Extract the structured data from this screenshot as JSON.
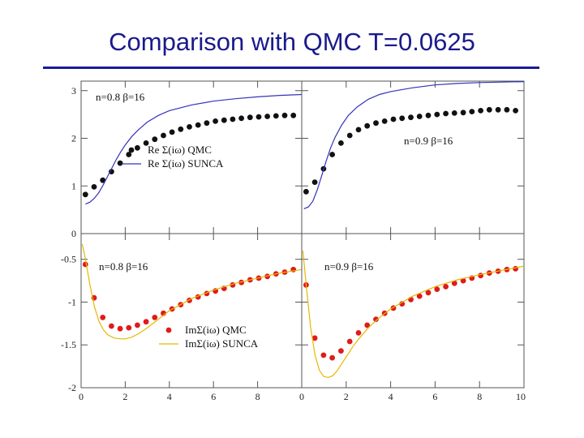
{
  "slide": {
    "title": "Comparison with QMC T=0.0625"
  },
  "colors": {
    "title": "#1a1a8c",
    "qmc_re": "#111111",
    "sunca_re": "#3333bb",
    "qmc_im": "#e11a1a",
    "sunca_im": "#e6b800",
    "frame": "#555555"
  },
  "chart_data": [
    {
      "type": "scatter",
      "panel": "top-left",
      "annotation": "n=0.8  β=16",
      "xlim": [
        0,
        10
      ],
      "ylim": [
        0,
        3.2
      ],
      "yticks": [
        0,
        1,
        2,
        3
      ],
      "ytick_labels": [
        "0",
        "1",
        "2",
        "3"
      ],
      "legend": [
        {
          "label": "Re Σ(iω) QMC",
          "marker": "dot"
        },
        {
          "label": "Re Σ(iω) SUNCA",
          "marker": "line"
        }
      ],
      "legend_position": "center-right",
      "series": [
        {
          "name": "Re Σ(iω) QMC",
          "kind": "points",
          "color": "#111111",
          "x": [
            0.196,
            0.589,
            0.982,
            1.374,
            1.767,
            2.16,
            2.553,
            2.945,
            3.338,
            3.731,
            4.123,
            4.516,
            4.909,
            5.301,
            5.694,
            6.087,
            6.48,
            6.872,
            7.265,
            7.658,
            8.05,
            8.443,
            8.836,
            9.229,
            9.621
          ],
          "y": [
            0.82,
            0.98,
            1.12,
            1.3,
            1.48,
            1.66,
            1.8,
            1.9,
            1.98,
            2.06,
            2.13,
            2.19,
            2.24,
            2.28,
            2.32,
            2.36,
            2.38,
            2.4,
            2.42,
            2.44,
            2.45,
            2.46,
            2.47,
            2.48,
            2.48
          ]
        },
        {
          "name": "Re Σ(iω) SUNCA",
          "kind": "line",
          "color": "#3333bb",
          "x": [
            0.2,
            0.4,
            0.6,
            0.8,
            1.0,
            1.2,
            1.4,
            1.6,
            1.8,
            2.0,
            2.3,
            2.6,
            3.0,
            3.5,
            4.0,
            5.0,
            6.0,
            7.0,
            8.0,
            9.0,
            10.0
          ],
          "y": [
            0.62,
            0.66,
            0.74,
            0.86,
            1.02,
            1.2,
            1.38,
            1.56,
            1.72,
            1.86,
            2.04,
            2.18,
            2.34,
            2.48,
            2.58,
            2.7,
            2.78,
            2.83,
            2.87,
            2.9,
            2.92
          ]
        }
      ]
    },
    {
      "type": "scatter",
      "panel": "top-right",
      "annotation": "n=0.9  β=16",
      "xlim": [
        0,
        10
      ],
      "ylim": [
        0,
        3.2
      ],
      "yticks": [
        0,
        1,
        2,
        3
      ],
      "ytick_labels": [
        "0",
        "1",
        "2",
        "3"
      ],
      "series": [
        {
          "name": "Re Σ(iω) QMC",
          "kind": "points",
          "color": "#111111",
          "x": [
            0.196,
            0.589,
            0.982,
            1.374,
            1.767,
            2.16,
            2.553,
            2.945,
            3.338,
            3.731,
            4.123,
            4.516,
            4.909,
            5.301,
            5.694,
            6.087,
            6.48,
            6.872,
            7.265,
            7.658,
            8.05,
            8.443,
            8.836,
            9.229,
            9.621
          ],
          "y": [
            0.88,
            1.08,
            1.36,
            1.66,
            1.9,
            2.06,
            2.18,
            2.26,
            2.32,
            2.36,
            2.4,
            2.42,
            2.44,
            2.46,
            2.48,
            2.5,
            2.52,
            2.53,
            2.54,
            2.56,
            2.58,
            2.6,
            2.6,
            2.6,
            2.58
          ]
        },
        {
          "name": "Re Σ(iω) SUNCA",
          "kind": "line",
          "color": "#3333bb",
          "x": [
            0.1,
            0.3,
            0.5,
            0.7,
            0.9,
            1.1,
            1.3,
            1.5,
            1.8,
            2.1,
            2.5,
            3.0,
            3.5,
            4.0,
            5.0,
            6.0,
            7.0,
            8.0,
            9.0,
            10.0
          ],
          "y": [
            0.52,
            0.56,
            0.68,
            0.92,
            1.22,
            1.52,
            1.8,
            2.02,
            2.28,
            2.48,
            2.66,
            2.82,
            2.92,
            2.98,
            3.06,
            3.12,
            3.15,
            3.17,
            3.18,
            3.19
          ]
        }
      ]
    },
    {
      "type": "scatter",
      "panel": "bottom-left",
      "annotation": "n=0.8  β=16",
      "xlim": [
        0,
        10
      ],
      "ylim": [
        -2,
        -0.2
      ],
      "xticks": [
        0,
        2,
        4,
        6,
        8
      ],
      "xtick_labels": [
        "0",
        "2",
        "4",
        "6",
        "8"
      ],
      "yticks": [
        -0.5,
        -1,
        -1.5,
        -2
      ],
      "ytick_labels": [
        "-0.5",
        "-1",
        "-1.5",
        "-2"
      ],
      "legend": [
        {
          "label": "ImΣ(iω)  QMC",
          "marker": "dot"
        },
        {
          "label": "ImΣ(iω)  SUNCA",
          "marker": "line"
        }
      ],
      "legend_position": "lower-right",
      "series": [
        {
          "name": "ImΣ(iω) QMC",
          "kind": "points",
          "color": "#e11a1a",
          "x": [
            0.196,
            0.589,
            0.982,
            1.374,
            1.767,
            2.16,
            2.553,
            2.945,
            3.338,
            3.731,
            4.123,
            4.516,
            4.909,
            5.301,
            5.694,
            6.087,
            6.48,
            6.872,
            7.265,
            7.658,
            8.05,
            8.443,
            8.836,
            9.229,
            9.621
          ],
          "y": [
            -0.56,
            -0.95,
            -1.18,
            -1.28,
            -1.31,
            -1.3,
            -1.27,
            -1.23,
            -1.18,
            -1.13,
            -1.08,
            -1.03,
            -0.98,
            -0.94,
            -0.9,
            -0.87,
            -0.84,
            -0.8,
            -0.77,
            -0.74,
            -0.72,
            -0.7,
            -0.67,
            -0.65,
            -0.62
          ]
        },
        {
          "name": "ImΣ(iω) SUNCA",
          "kind": "line",
          "color": "#e6b800",
          "x": [
            0.05,
            0.2,
            0.4,
            0.6,
            0.8,
            1.0,
            1.2,
            1.5,
            1.8,
            2.0,
            2.3,
            2.6,
            3.0,
            3.5,
            4.0,
            5.0,
            6.0,
            7.0,
            8.0,
            9.0,
            10.0
          ],
          "y": [
            -0.32,
            -0.5,
            -0.8,
            -1.05,
            -1.22,
            -1.32,
            -1.38,
            -1.42,
            -1.43,
            -1.43,
            -1.41,
            -1.37,
            -1.3,
            -1.2,
            -1.1,
            -0.96,
            -0.86,
            -0.78,
            -0.72,
            -0.66,
            -0.62
          ]
        }
      ]
    },
    {
      "type": "scatter",
      "panel": "bottom-right",
      "annotation": "n=0.9  β=16",
      "xlim": [
        0,
        10
      ],
      "ylim": [
        -2,
        -0.2
      ],
      "xticks": [
        0,
        2,
        4,
        6,
        8,
        10
      ],
      "xtick_labels": [
        "0",
        "2",
        "4",
        "6",
        "8",
        "10"
      ],
      "yticks": [
        -0.5,
        -1,
        -1.5,
        -2
      ],
      "ytick_labels": [
        "-0.5",
        "-1",
        "-1.5",
        "-2"
      ],
      "series": [
        {
          "name": "ImΣ(iω) QMC",
          "kind": "points",
          "color": "#e11a1a",
          "x": [
            0.196,
            0.589,
            0.982,
            1.374,
            1.767,
            2.16,
            2.553,
            2.945,
            3.338,
            3.731,
            4.123,
            4.516,
            4.909,
            5.301,
            5.694,
            6.087,
            6.48,
            6.872,
            7.265,
            7.658,
            8.05,
            8.443,
            8.836,
            9.229,
            9.621
          ],
          "y": [
            -0.8,
            -1.42,
            -1.62,
            -1.65,
            -1.57,
            -1.46,
            -1.36,
            -1.27,
            -1.2,
            -1.13,
            -1.07,
            -1.02,
            -0.97,
            -0.93,
            -0.89,
            -0.85,
            -0.82,
            -0.78,
            -0.75,
            -0.72,
            -0.69,
            -0.66,
            -0.64,
            -0.62,
            -0.61
          ]
        },
        {
          "name": "ImΣ(iω) SUNCA",
          "kind": "line",
          "color": "#e6b800",
          "x": [
            0.05,
            0.2,
            0.4,
            0.6,
            0.8,
            1.0,
            1.2,
            1.4,
            1.6,
            1.8,
            2.0,
            2.3,
            2.6,
            3.0,
            3.5,
            4.0,
            5.0,
            6.0,
            7.0,
            8.0,
            9.0,
            10.0
          ],
          "y": [
            -0.4,
            -0.8,
            -1.3,
            -1.62,
            -1.8,
            -1.87,
            -1.88,
            -1.86,
            -1.8,
            -1.72,
            -1.64,
            -1.52,
            -1.42,
            -1.3,
            -1.18,
            -1.08,
            -0.93,
            -0.82,
            -0.74,
            -0.68,
            -0.63,
            -0.58
          ]
        }
      ]
    }
  ]
}
